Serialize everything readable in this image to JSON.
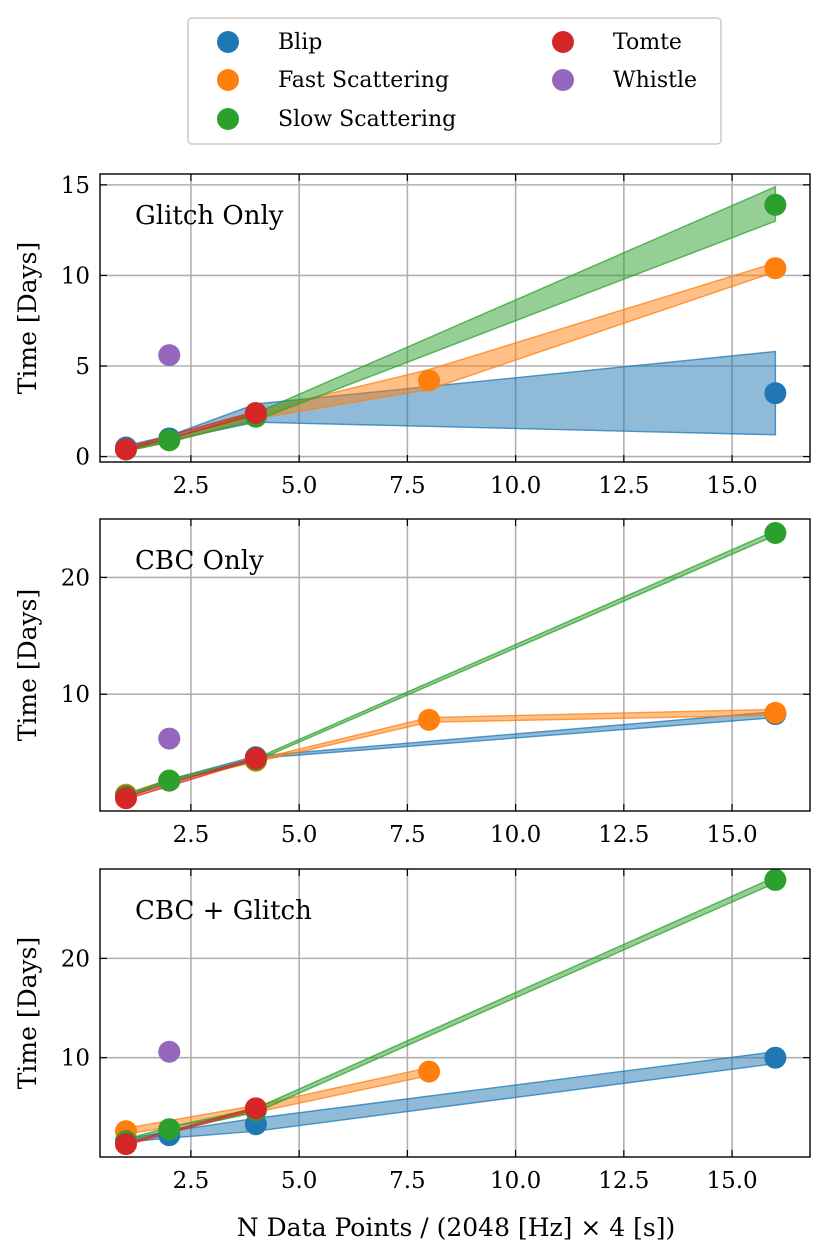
{
  "chart_data": {
    "type": "scatter",
    "xlabel": "N Data Points / (2048 [Hz] × 4 [s])",
    "xlim": [
      0.4,
      16.8
    ],
    "xticks": [
      2.5,
      5.0,
      7.5,
      10.0,
      12.5,
      15.0
    ],
    "xtick_labels": [
      "2.5",
      "5.0",
      "7.5",
      "10.0",
      "12.5",
      "15.0"
    ],
    "grid": true,
    "legend": {
      "location": "top-center",
      "ncol": 2,
      "entries": [
        "Blip",
        "Fast Scattering",
        "Slow Scattering",
        "Tomte",
        "Whistle"
      ]
    },
    "colors": {
      "Blip": "#1f77b4",
      "Fast Scattering": "#ff7f0e",
      "Slow Scattering": "#2ca02c",
      "Tomte": "#d62728",
      "Whistle": "#9467bd"
    },
    "panels": [
      {
        "title": "Glitch Only",
        "ylabel": "Time [Days]",
        "ylim": [
          -0.3,
          15.6
        ],
        "yticks": [
          0,
          5,
          10,
          15
        ],
        "ytick_labels": [
          "0",
          "5",
          "10",
          "15"
        ],
        "series": [
          {
            "name": "Blip",
            "points": [
              [
                1,
                0.5
              ],
              [
                2,
                1.0
              ],
              [
                4,
                2.4
              ],
              [
                16,
                3.5
              ]
            ],
            "band_x": [
              1,
              2,
              4,
              16
            ],
            "band_lower": [
              0.35,
              0.9,
              1.9,
              1.2
            ],
            "band_upper": [
              0.6,
              1.15,
              2.9,
              5.8
            ]
          },
          {
            "name": "Fast Scattering",
            "points": [
              [
                1,
                0.4
              ],
              [
                2,
                0.9
              ],
              [
                4,
                2.3
              ],
              [
                8,
                4.2
              ],
              [
                16,
                10.4
              ]
            ],
            "band_x": [
              1,
              2,
              4,
              8,
              16
            ],
            "band_lower": [
              0.3,
              0.8,
              2.1,
              3.7,
              10.2
            ],
            "band_upper": [
              0.5,
              1.0,
              2.5,
              4.8,
              10.7
            ]
          },
          {
            "name": "Slow Scattering",
            "points": [
              [
                1,
                0.4
              ],
              [
                2,
                0.9
              ],
              [
                4,
                2.2
              ],
              [
                16,
                13.9
              ]
            ],
            "band_x": [
              1,
              2,
              4,
              16
            ],
            "band_lower": [
              0.3,
              0.8,
              2.0,
              13.0
            ],
            "band_upper": [
              0.5,
              1.0,
              2.4,
              14.9
            ]
          },
          {
            "name": "Tomte",
            "points": [
              [
                1,
                0.4
              ],
              [
                4,
                2.4
              ]
            ],
            "band_x": [
              1,
              4
            ],
            "band_lower": [
              0.35,
              2.3
            ],
            "band_upper": [
              0.5,
              2.5
            ]
          },
          {
            "name": "Whistle",
            "points": [
              [
                2,
                5.6
              ]
            ]
          }
        ]
      },
      {
        "title": "CBC Only",
        "ylabel": "Time [Days]",
        "ylim": [
          0,
          25
        ],
        "yticks": [
          10,
          20
        ],
        "ytick_labels": [
          "10",
          "20"
        ],
        "series": [
          {
            "name": "Blip",
            "points": [
              [
                1,
                1.3
              ],
              [
                2,
                2.6
              ],
              [
                4,
                4.6
              ],
              [
                16,
                8.3
              ]
            ],
            "band_x": [
              1,
              2,
              4,
              16
            ],
            "band_lower": [
              1.2,
              2.5,
              4.5,
              8.0
            ],
            "band_upper": [
              1.4,
              2.7,
              4.7,
              8.5
            ]
          },
          {
            "name": "Fast Scattering",
            "points": [
              [
                1,
                1.4
              ],
              [
                2,
                2.6
              ],
              [
                4,
                4.3
              ],
              [
                8,
                7.8
              ],
              [
                16,
                8.4
              ]
            ],
            "band_x": [
              1,
              2,
              4,
              8,
              16
            ],
            "band_lower": [
              1.3,
              2.5,
              4.2,
              7.6,
              8.2
            ],
            "band_upper": [
              1.5,
              2.7,
              4.4,
              8.0,
              8.7
            ]
          },
          {
            "name": "Slow Scattering",
            "points": [
              [
                1,
                1.3
              ],
              [
                2,
                2.6
              ],
              [
                4,
                4.4
              ],
              [
                16,
                23.8
              ]
            ],
            "band_x": [
              1,
              2,
              4,
              16
            ],
            "band_lower": [
              1.2,
              2.5,
              4.3,
              23.6
            ],
            "band_upper": [
              1.4,
              2.7,
              4.5,
              24.0
            ]
          },
          {
            "name": "Tomte",
            "points": [
              [
                1,
                1.1
              ],
              [
                4,
                4.5
              ]
            ],
            "band_x": [
              1,
              4
            ],
            "band_lower": [
              1.0,
              4.4
            ],
            "band_upper": [
              1.2,
              4.6
            ]
          },
          {
            "name": "Whistle",
            "points": [
              [
                2,
                6.2
              ]
            ]
          }
        ]
      },
      {
        "title": "CBC + Glitch",
        "ylabel": "Time [Days]",
        "ylim": [
          0,
          29
        ],
        "yticks": [
          10,
          20
        ],
        "ytick_labels": [
          "10",
          "20"
        ],
        "series": [
          {
            "name": "Blip",
            "points": [
              [
                1,
                1.6
              ],
              [
                2,
                2.2
              ],
              [
                4,
                3.3
              ],
              [
                16,
                10.0
              ]
            ],
            "band_x": [
              1,
              2,
              4,
              16
            ],
            "band_lower": [
              1.5,
              1.9,
              2.6,
              9.4
            ],
            "band_upper": [
              1.8,
              2.6,
              3.9,
              10.6
            ]
          },
          {
            "name": "Fast Scattering",
            "points": [
              [
                1,
                2.6
              ],
              [
                4,
                4.8
              ],
              [
                8,
                8.6
              ]
            ],
            "band_x": [
              1,
              4,
              8
            ],
            "band_lower": [
              2.3,
              4.5,
              8.2
            ],
            "band_upper": [
              2.9,
              5.2,
              9.0
            ]
          },
          {
            "name": "Slow Scattering",
            "points": [
              [
                1,
                1.6
              ],
              [
                2,
                2.8
              ],
              [
                4,
                4.7
              ],
              [
                16,
                27.9
              ]
            ],
            "band_x": [
              1,
              2,
              4,
              16
            ],
            "band_lower": [
              1.4,
              2.6,
              4.5,
              27.6
            ],
            "band_upper": [
              1.8,
              3.0,
              4.9,
              28.2
            ]
          },
          {
            "name": "Tomte",
            "points": [
              [
                1,
                1.3
              ],
              [
                4,
                4.9
              ]
            ],
            "band_x": [
              1,
              4
            ],
            "band_lower": [
              1.2,
              4.8
            ],
            "band_upper": [
              1.4,
              5.0
            ]
          },
          {
            "name": "Whistle",
            "points": [
              [
                2,
                10.6
              ]
            ]
          }
        ]
      }
    ]
  }
}
